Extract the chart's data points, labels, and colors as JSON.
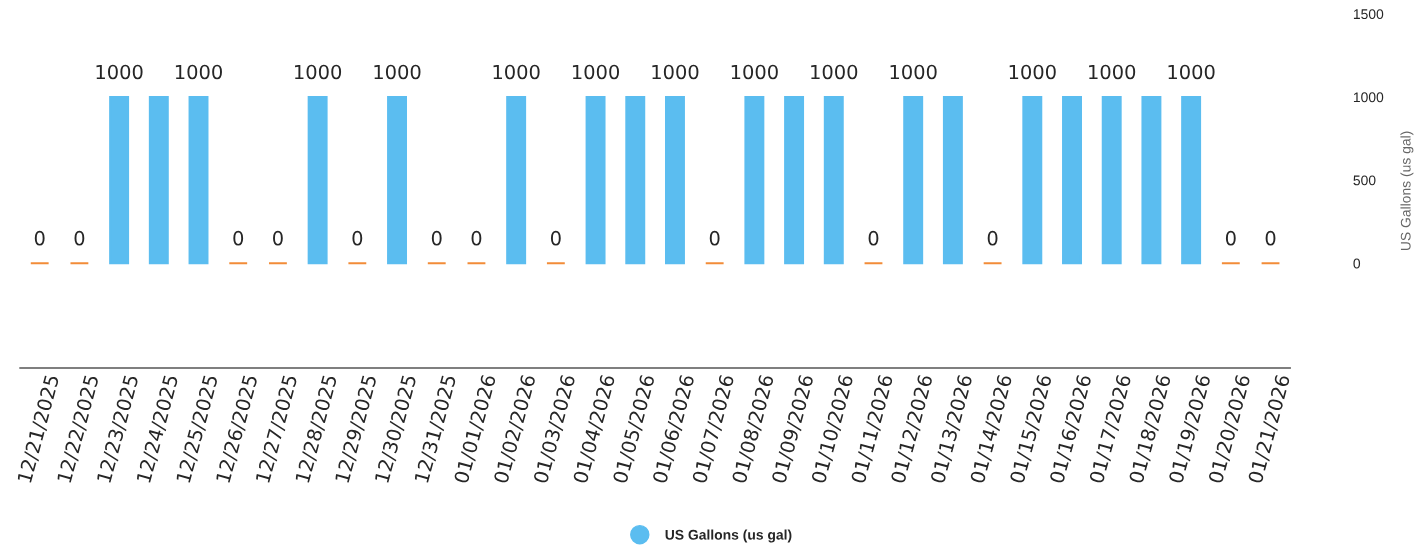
{
  "chart_data": {
    "type": "bar",
    "categories": [
      "12/21/2025",
      "12/22/2025",
      "12/23/2025",
      "12/24/2025",
      "12/25/2025",
      "12/26/2025",
      "12/27/2025",
      "12/28/2025",
      "12/29/2025",
      "12/30/2025",
      "12/31/2025",
      "01/01/2026",
      "01/02/2026",
      "01/03/2026",
      "01/04/2026",
      "01/05/2026",
      "01/06/2026",
      "01/07/2026",
      "01/08/2026",
      "01/09/2026",
      "01/10/2026",
      "01/11/2026",
      "01/12/2026",
      "01/13/2026",
      "01/14/2026",
      "01/15/2026",
      "01/16/2026",
      "01/17/2026",
      "01/18/2026",
      "01/19/2026",
      "01/20/2026",
      "01/21/2026"
    ],
    "series": [
      {
        "name": "US Gallons (us gal)",
        "color": "#5bbdf0",
        "values": [
          0,
          0,
          1000,
          1000,
          1000,
          0,
          0,
          1000,
          0,
          1000,
          0,
          0,
          1000,
          0,
          1000,
          1000,
          1000,
          0,
          1000,
          1000,
          1000,
          0,
          1000,
          1000,
          0,
          1000,
          1000,
          1000,
          1000,
          1000,
          0,
          0
        ],
        "colors": [
          "#f28c38",
          "#f28c38",
          "#5bbdf0",
          "#5bbdf0",
          "#5bbdf0",
          "#f28c38",
          "#f28c38",
          "#5bbdf0",
          "#f28c38",
          "#5bbdf0",
          "#f28c38",
          "#f28c38",
          "#5bbdf0",
          "#f28c38",
          "#5bbdf0",
          "#5bbdf0",
          "#5bbdf0",
          "#f28c38",
          "#5bbdf0",
          "#5bbdf0",
          "#5bbdf0",
          "#f28c38",
          "#5bbdf0",
          "#5bbdf0",
          "#f28c38",
          "#5bbdf0",
          "#5bbdf0",
          "#5bbdf0",
          "#5bbdf0",
          "#5bbdf0",
          "#f28c38",
          "#f28c38"
        ],
        "value_labels": [
          "0",
          "0",
          "1000",
          null,
          "1000",
          "0",
          "0",
          "1000",
          "0",
          "1000",
          "0",
          "0",
          "1000",
          "0",
          "1000",
          null,
          "1000",
          "0",
          "1000",
          null,
          "1000",
          "0",
          "1000",
          null,
          "0",
          "1000",
          null,
          "1000",
          null,
          "1000",
          "0",
          "0"
        ]
      }
    ],
    "ylabel": "US Gallons (us gal)",
    "ylim": [
      -630,
      1500
    ],
    "yticks": [
      0,
      500,
      1000,
      1500
    ],
    "grid": false,
    "legend": "bottom"
  }
}
